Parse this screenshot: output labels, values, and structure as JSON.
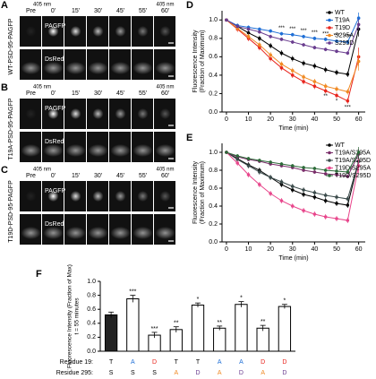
{
  "image_panels": [
    {
      "label": "A",
      "sample": "WT-PSD-95-PAGFP",
      "times": [
        "Pre",
        "0'",
        "15'",
        "30'",
        "45'",
        "55'",
        "60'"
      ],
      "laser_label": "405 nm",
      "channels": [
        "PAGFP",
        "DsRed"
      ]
    },
    {
      "label": "B",
      "sample": "T19A-PSD-95-PAGFP",
      "times": [
        "Pre",
        "0'",
        "15'",
        "30'",
        "45'",
        "55'",
        "60'"
      ],
      "laser_label": "405 nm",
      "channels": [
        "PAGFP",
        "DsRed"
      ]
    },
    {
      "label": "C",
      "sample": "T19D-PSD-95-PAGFP",
      "times": [
        "Pre",
        "0'",
        "15'",
        "30'",
        "45'",
        "55'",
        "60'"
      ],
      "laser_label": "405 nm",
      "channels": [
        "PAGFP",
        "DsRed"
      ]
    }
  ],
  "chart_data": [
    {
      "type": "line",
      "label": "D",
      "x_label": "Time (min)",
      "y_label": [
        "Fluorescence Intensity",
        "(Fraction of Maximum)"
      ],
      "x": [
        0,
        5,
        10,
        15,
        20,
        25,
        30,
        35,
        40,
        45,
        50,
        55,
        60
      ],
      "xlim": [
        -2,
        63
      ],
      "xticks": [
        0,
        10,
        20,
        30,
        40,
        50,
        60
      ],
      "ylim": [
        0,
        1.1
      ],
      "yticks": [
        {
          "value": 0,
          "label": "0.0"
        },
        {
          "value": 0.2,
          "label": "0.2"
        },
        {
          "value": 0.4,
          "label": "0.4"
        },
        {
          "value": 0.6,
          "label": "0.6"
        },
        {
          "value": 0.8,
          "label": "0.8"
        },
        {
          "value": 1,
          "label": "1.0"
        }
      ],
      "series": [
        {
          "name": "WT",
          "color": "#000000",
          "values": [
            1.0,
            0.93,
            0.86,
            0.8,
            0.72,
            0.64,
            0.58,
            0.53,
            0.5,
            0.46,
            0.43,
            0.41,
            0.9
          ],
          "errors": [
            0.01,
            0.03,
            0.03,
            0.03,
            0.03,
            0.03,
            0.03,
            0.03,
            0.03,
            0.03,
            0.03,
            0.03,
            0.08
          ]
        },
        {
          "name": "T19A",
          "color": "#1f6fd6",
          "values": [
            1.0,
            0.94,
            0.92,
            0.9,
            0.88,
            0.85,
            0.84,
            0.82,
            0.8,
            0.79,
            0.77,
            0.76,
            1.02
          ],
          "errors": [
            0.01,
            0.02,
            0.02,
            0.02,
            0.02,
            0.02,
            0.02,
            0.02,
            0.02,
            0.02,
            0.02,
            0.02,
            0.06
          ]
        },
        {
          "name": "T19D",
          "color": "#e8241c",
          "values": [
            1.0,
            0.9,
            0.8,
            0.7,
            0.58,
            0.48,
            0.4,
            0.33,
            0.28,
            0.23,
            0.18,
            0.12,
            0.6
          ],
          "errors": [
            0.01,
            0.03,
            0.03,
            0.03,
            0.03,
            0.03,
            0.03,
            0.03,
            0.03,
            0.03,
            0.03,
            0.03,
            0.1
          ]
        },
        {
          "name": "S295A",
          "color": "#f08a24",
          "values": [
            1.0,
            0.91,
            0.82,
            0.73,
            0.62,
            0.52,
            0.45,
            0.38,
            0.33,
            0.28,
            0.25,
            0.22,
            0.55
          ],
          "errors": [
            0.01,
            0.03,
            0.03,
            0.03,
            0.03,
            0.03,
            0.03,
            0.03,
            0.03,
            0.03,
            0.03,
            0.03,
            0.1
          ]
        },
        {
          "name": "S295D",
          "color": "#6a3d8f",
          "values": [
            1.0,
            0.93,
            0.9,
            0.87,
            0.82,
            0.79,
            0.76,
            0.73,
            0.7,
            0.68,
            0.66,
            0.64,
            0.95
          ],
          "errors": [
            0.01,
            0.02,
            0.02,
            0.02,
            0.02,
            0.02,
            0.02,
            0.02,
            0.02,
            0.02,
            0.02,
            0.02,
            0.06
          ]
        }
      ],
      "annotations": [
        {
          "text": "***",
          "x": 25,
          "y": 0.91
        },
        {
          "text": "***",
          "x": 30,
          "y": 0.9
        },
        {
          "text": "***",
          "x": 35,
          "y": 0.88
        },
        {
          "text": "***",
          "x": 40,
          "y": 0.86
        },
        {
          "text": "***",
          "x": 45,
          "y": 0.85
        },
        {
          "text": "***",
          "x": 50,
          "y": 0.83
        },
        {
          "text": "***",
          "x": 55,
          "y": 0.82
        },
        {
          "text": "**",
          "x": 45,
          "y": 0.17
        },
        {
          "text": "*",
          "x": 50,
          "y": 0.12
        },
        {
          "text": "***",
          "x": 55,
          "y": 0.05
        }
      ]
    },
    {
      "type": "line",
      "label": "E",
      "x_label": "Time (min)",
      "y_label": [
        "Fluorescence Intensity",
        "(Fraction of Maximum)"
      ],
      "x": [
        0,
        5,
        10,
        15,
        20,
        25,
        30,
        35,
        40,
        45,
        50,
        55,
        60
      ],
      "xlim": [
        -2,
        63
      ],
      "xticks": [
        0,
        10,
        20,
        30,
        40,
        50,
        60
      ],
      "ylim": [
        0,
        1.1
      ],
      "yticks": [
        {
          "value": 0,
          "label": "0.0"
        },
        {
          "value": 0.2,
          "label": "0.2"
        },
        {
          "value": 0.4,
          "label": "0.4"
        },
        {
          "value": 0.6,
          "label": "0.6"
        },
        {
          "value": 0.8,
          "label": "0.8"
        },
        {
          "value": 1,
          "label": "1.0"
        }
      ],
      "series": [
        {
          "name": "WT",
          "color": "#000000",
          "values": [
            1.0,
            0.93,
            0.86,
            0.8,
            0.72,
            0.64,
            0.58,
            0.53,
            0.5,
            0.46,
            0.43,
            0.41,
            0.9
          ],
          "errors": [
            0.01,
            0.03,
            0.03,
            0.03,
            0.03,
            0.03,
            0.03,
            0.03,
            0.03,
            0.03,
            0.03,
            0.03,
            0.08
          ]
        },
        {
          "name": "T19A/S295A",
          "color": "#7a2e6a",
          "values": [
            1.0,
            0.95,
            0.92,
            0.9,
            0.87,
            0.85,
            0.83,
            0.8,
            0.78,
            0.76,
            0.75,
            0.73,
            0.98
          ],
          "errors": [
            0.01,
            0.02,
            0.02,
            0.02,
            0.02,
            0.02,
            0.02,
            0.02,
            0.02,
            0.02,
            0.02,
            0.02,
            0.06
          ]
        },
        {
          "name": "T19A/S295D",
          "color": "#3a4a4a",
          "values": [
            1.0,
            0.92,
            0.85,
            0.78,
            0.72,
            0.67,
            0.62,
            0.58,
            0.55,
            0.52,
            0.5,
            0.48,
            0.9
          ],
          "errors": [
            0.01,
            0.03,
            0.03,
            0.03,
            0.03,
            0.03,
            0.03,
            0.03,
            0.03,
            0.03,
            0.03,
            0.03,
            0.07
          ]
        },
        {
          "name": "T19D/S295A",
          "color": "#e8458b",
          "values": [
            1.0,
            0.88,
            0.75,
            0.64,
            0.54,
            0.46,
            0.4,
            0.35,
            0.31,
            0.28,
            0.26,
            0.24,
            0.85
          ],
          "errors": [
            0.01,
            0.03,
            0.03,
            0.03,
            0.03,
            0.03,
            0.03,
            0.03,
            0.03,
            0.03,
            0.03,
            0.03,
            0.08
          ]
        },
        {
          "name": "T19D/S295D",
          "color": "#2e6b3a",
          "values": [
            1.0,
            0.96,
            0.93,
            0.91,
            0.89,
            0.87,
            0.85,
            0.83,
            0.82,
            0.8,
            0.79,
            0.78,
            1.0
          ],
          "errors": [
            0.01,
            0.02,
            0.02,
            0.02,
            0.02,
            0.02,
            0.02,
            0.02,
            0.02,
            0.02,
            0.02,
            0.02,
            0.06
          ]
        }
      ]
    },
    {
      "type": "bar",
      "label": "F",
      "y_label": [
        "Fluorescence Intensity (Fraction of Max)",
        "t = 55 minutes"
      ],
      "ylim": [
        0,
        1
      ],
      "yticks": [
        {
          "value": 0,
          "label": "0.0"
        },
        {
          "value": 0.2,
          "label": "0.2"
        },
        {
          "value": 0.4,
          "label": "0.4"
        },
        {
          "value": 0.6,
          "label": "0.6"
        },
        {
          "value": 0.8,
          "label": "0.8"
        },
        {
          "value": 1,
          "label": "1.0"
        }
      ],
      "values": [
        0.52,
        0.75,
        0.23,
        0.31,
        0.66,
        0.33,
        0.67,
        0.33,
        0.64
      ],
      "errors": [
        0.04,
        0.05,
        0.04,
        0.04,
        0.03,
        0.03,
        0.04,
        0.04,
        0.03
      ],
      "colors": [
        "#222222",
        "#ffffff",
        "#ffffff",
        "#ffffff",
        "#ffffff",
        "#ffffff",
        "#ffffff",
        "#ffffff",
        "#ffffff"
      ],
      "significance": [
        null,
        "***",
        "***",
        "**",
        "*",
        "**",
        "*",
        "**",
        "*"
      ],
      "row_labels": [
        "Residue 19:",
        "Residue 295:"
      ],
      "residue_19": [
        "T",
        "A",
        "D",
        "T",
        "T",
        "A",
        "A",
        "D",
        "D"
      ],
      "residue_19_colors": [
        "#000000",
        "#1f6fd6",
        "#e8241c",
        "#000000",
        "#000000",
        "#1f6fd6",
        "#1f6fd6",
        "#e8241c",
        "#e8241c"
      ],
      "residue_295": [
        "S",
        "S",
        "S",
        "A",
        "D",
        "A",
        "D",
        "A",
        "D"
      ],
      "residue_295_colors": [
        "#000000",
        "#000000",
        "#000000",
        "#f08a24",
        "#6a3d8f",
        "#f08a24",
        "#6a3d8f",
        "#f08a24",
        "#6a3d8f"
      ]
    }
  ]
}
